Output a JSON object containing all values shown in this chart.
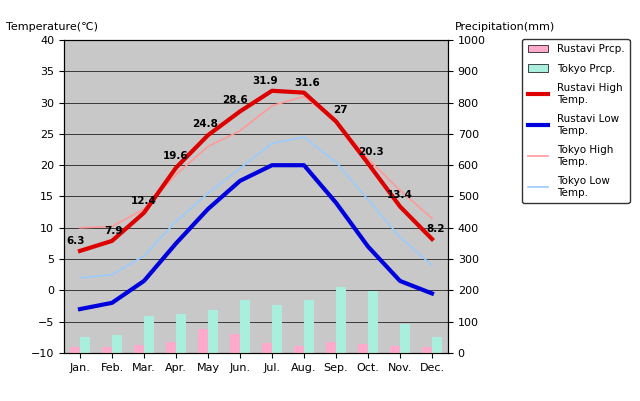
{
  "months": [
    "Jan.",
    "Feb.",
    "Mar.",
    "Apr.",
    "May",
    "Jun.",
    "Jul.",
    "Aug.",
    "Sep.",
    "Oct.",
    "Nov.",
    "Dec."
  ],
  "rustavi_high": [
    6.3,
    7.9,
    12.4,
    19.6,
    24.8,
    28.6,
    31.9,
    31.6,
    27.0,
    20.3,
    13.4,
    8.2
  ],
  "rustavi_low": [
    -3.0,
    -2.0,
    1.5,
    7.5,
    13.0,
    17.5,
    20.0,
    20.0,
    14.0,
    7.0,
    1.5,
    -0.5
  ],
  "tokyo_high": [
    10.0,
    10.2,
    13.0,
    18.5,
    23.0,
    25.5,
    29.5,
    31.0,
    27.0,
    21.0,
    16.0,
    11.5
  ],
  "tokyo_low": [
    2.0,
    2.5,
    5.5,
    11.0,
    15.5,
    19.5,
    23.5,
    24.5,
    20.5,
    14.5,
    8.5,
    4.0
  ],
  "rustavi_prcp": [
    19,
    20,
    24,
    34,
    76,
    61,
    32,
    23,
    34,
    29,
    22,
    18
  ],
  "tokyo_prcp": [
    52,
    56,
    118,
    125,
    138,
    168,
    154,
    168,
    210,
    198,
    93,
    51
  ],
  "bg_color": "#c8c8c8",
  "rustavi_high_color": "#dd0000",
  "rustavi_low_color": "#0000dd",
  "tokyo_high_color": "#ff9999",
  "tokyo_low_color": "#99ccff",
  "rustavi_prcp_color": "#ffaacc",
  "tokyo_prcp_color": "#aaeedd",
  "title_left": "Temperature(℃)",
  "title_right": "Precipitation(mm)",
  "ylim_temp": [
    -10,
    40
  ],
  "ylim_prcp": [
    0,
    1000
  ],
  "yticks_temp": [
    -10,
    -5,
    0,
    5,
    10,
    15,
    20,
    25,
    30,
    35,
    40
  ],
  "yticks_prcp": [
    0,
    100,
    200,
    300,
    400,
    500,
    600,
    700,
    800,
    900,
    1000
  ],
  "annot_rh": [
    "6.3",
    "7.9",
    "12.4",
    "19.6",
    "24.8",
    "28.6",
    "31.9",
    "31.6",
    "27",
    "20.3",
    "13.4",
    "8.2"
  ]
}
